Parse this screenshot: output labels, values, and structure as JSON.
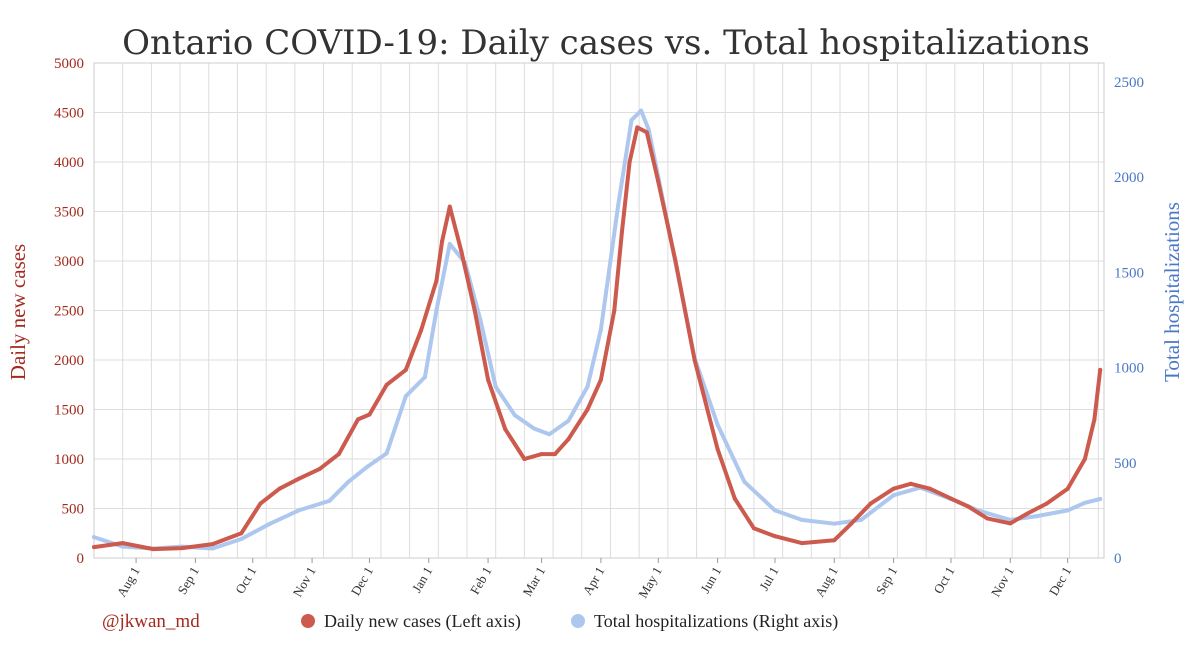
{
  "credit": "@jkwan_md",
  "colors": {
    "cases": "#cc5a4d",
    "hospitalizations": "#aec7ef",
    "left_axis": "#a52a1e",
    "right_axis": "#4a78c8",
    "grid": "#dddddd"
  },
  "chart_data": {
    "type": "line",
    "title": "Ontario COVID-19: Daily cases vs. Total hospitalizations",
    "ylabel_left": "Daily new cases",
    "ylabel_right": "Total hospitalizations",
    "grid": true,
    "legend_placement": "bottom",
    "x_range": [
      "2020-07-10",
      "2021-12-20"
    ],
    "ylim_left": [
      0,
      5000
    ],
    "ylim_right": [
      0,
      2600
    ],
    "yticks_left": [
      "0",
      "500",
      "1000",
      "1500",
      "2000",
      "2500",
      "3000",
      "3500",
      "4000",
      "4500",
      "5000"
    ],
    "yticks_right": [
      "0",
      "500",
      "1000",
      "1500",
      "2000",
      "2500"
    ],
    "x_ticks": [
      {
        "date": "2020-08-01",
        "label": "Aug 1"
      },
      {
        "date": "2020-09-01",
        "label": "Sep 1"
      },
      {
        "date": "2020-10-01",
        "label": "Oct 1"
      },
      {
        "date": "2020-11-01",
        "label": "Nov 1"
      },
      {
        "date": "2020-12-01",
        "label": "Dec 1"
      },
      {
        "date": "2021-01-01",
        "label": "Jan 1"
      },
      {
        "date": "2021-02-01",
        "label": "Feb 1"
      },
      {
        "date": "2021-03-01",
        "label": "Mar 1"
      },
      {
        "date": "2021-04-01",
        "label": "Apr 1"
      },
      {
        "date": "2021-05-01",
        "label": "May 1"
      },
      {
        "date": "2021-06-01",
        "label": "Jun 1"
      },
      {
        "date": "2021-07-01",
        "label": "Jul 1"
      },
      {
        "date": "2021-08-01",
        "label": "Aug 1"
      },
      {
        "date": "2021-09-01",
        "label": "Sep 1"
      },
      {
        "date": "2021-10-01",
        "label": "Oct 1"
      },
      {
        "date": "2021-11-01",
        "label": "Nov 1"
      },
      {
        "date": "2021-12-01",
        "label": "Dec 1"
      }
    ],
    "series": [
      {
        "name": "Daily new cases (Left axis)",
        "axis": "left",
        "x": [
          "2020-07-10",
          "2020-07-25",
          "2020-08-10",
          "2020-08-25",
          "2020-09-10",
          "2020-09-25",
          "2020-10-05",
          "2020-10-15",
          "2020-10-25",
          "2020-11-05",
          "2020-11-15",
          "2020-11-25",
          "2020-12-01",
          "2020-12-10",
          "2020-12-20",
          "2020-12-28",
          "2021-01-05",
          "2021-01-08",
          "2021-01-12",
          "2021-01-18",
          "2021-01-25",
          "2021-02-01",
          "2021-02-10",
          "2021-02-20",
          "2021-03-01",
          "2021-03-08",
          "2021-03-15",
          "2021-03-25",
          "2021-04-01",
          "2021-04-08",
          "2021-04-12",
          "2021-04-16",
          "2021-04-20",
          "2021-04-25",
          "2021-05-01",
          "2021-05-10",
          "2021-05-20",
          "2021-06-01",
          "2021-06-10",
          "2021-06-20",
          "2021-07-01",
          "2021-07-15",
          "2021-08-01",
          "2021-08-10",
          "2021-08-20",
          "2021-09-01",
          "2021-09-10",
          "2021-09-20",
          "2021-10-01",
          "2021-10-10",
          "2021-10-20",
          "2021-11-01",
          "2021-11-10",
          "2021-11-20",
          "2021-12-01",
          "2021-12-10",
          "2021-12-15",
          "2021-12-18"
        ],
        "y": [
          110,
          150,
          90,
          100,
          140,
          250,
          550,
          700,
          800,
          900,
          1050,
          1400,
          1450,
          1750,
          1900,
          2300,
          2800,
          3200,
          3550,
          3100,
          2500,
          1800,
          1300,
          1000,
          1050,
          1050,
          1200,
          1500,
          1800,
          2500,
          3300,
          4000,
          4350,
          4300,
          3800,
          3000,
          2000,
          1100,
          600,
          300,
          220,
          150,
          180,
          350,
          550,
          700,
          750,
          700,
          600,
          520,
          400,
          350,
          450,
          550,
          700,
          1000,
          1400,
          1900
        ]
      },
      {
        "name": "Total hospitalizations (Right axis)",
        "axis": "right",
        "x": [
          "2020-07-10",
          "2020-07-25",
          "2020-08-10",
          "2020-08-25",
          "2020-09-10",
          "2020-09-25",
          "2020-10-10",
          "2020-10-25",
          "2020-11-10",
          "2020-11-20",
          "2020-11-30",
          "2020-12-10",
          "2020-12-20",
          "2020-12-30",
          "2021-01-05",
          "2021-01-12",
          "2021-01-20",
          "2021-01-28",
          "2021-02-05",
          "2021-02-15",
          "2021-02-25",
          "2021-03-05",
          "2021-03-15",
          "2021-03-25",
          "2021-04-01",
          "2021-04-10",
          "2021-04-17",
          "2021-04-22",
          "2021-04-26",
          "2021-05-01",
          "2021-05-10",
          "2021-05-20",
          "2021-06-01",
          "2021-06-15",
          "2021-07-01",
          "2021-07-15",
          "2021-08-01",
          "2021-08-15",
          "2021-09-01",
          "2021-09-15",
          "2021-10-01",
          "2021-10-15",
          "2021-11-01",
          "2021-11-15",
          "2021-12-01",
          "2021-12-10",
          "2021-12-18"
        ],
        "y": [
          110,
          60,
          50,
          60,
          50,
          100,
          180,
          250,
          300,
          400,
          480,
          550,
          850,
          950,
          1300,
          1650,
          1550,
          1250,
          900,
          750,
          680,
          650,
          720,
          900,
          1200,
          1850,
          2300,
          2350,
          2250,
          2000,
          1550,
          1050,
          700,
          400,
          250,
          200,
          180,
          200,
          330,
          370,
          310,
          250,
          200,
          220,
          250,
          290,
          310
        ]
      }
    ]
  }
}
